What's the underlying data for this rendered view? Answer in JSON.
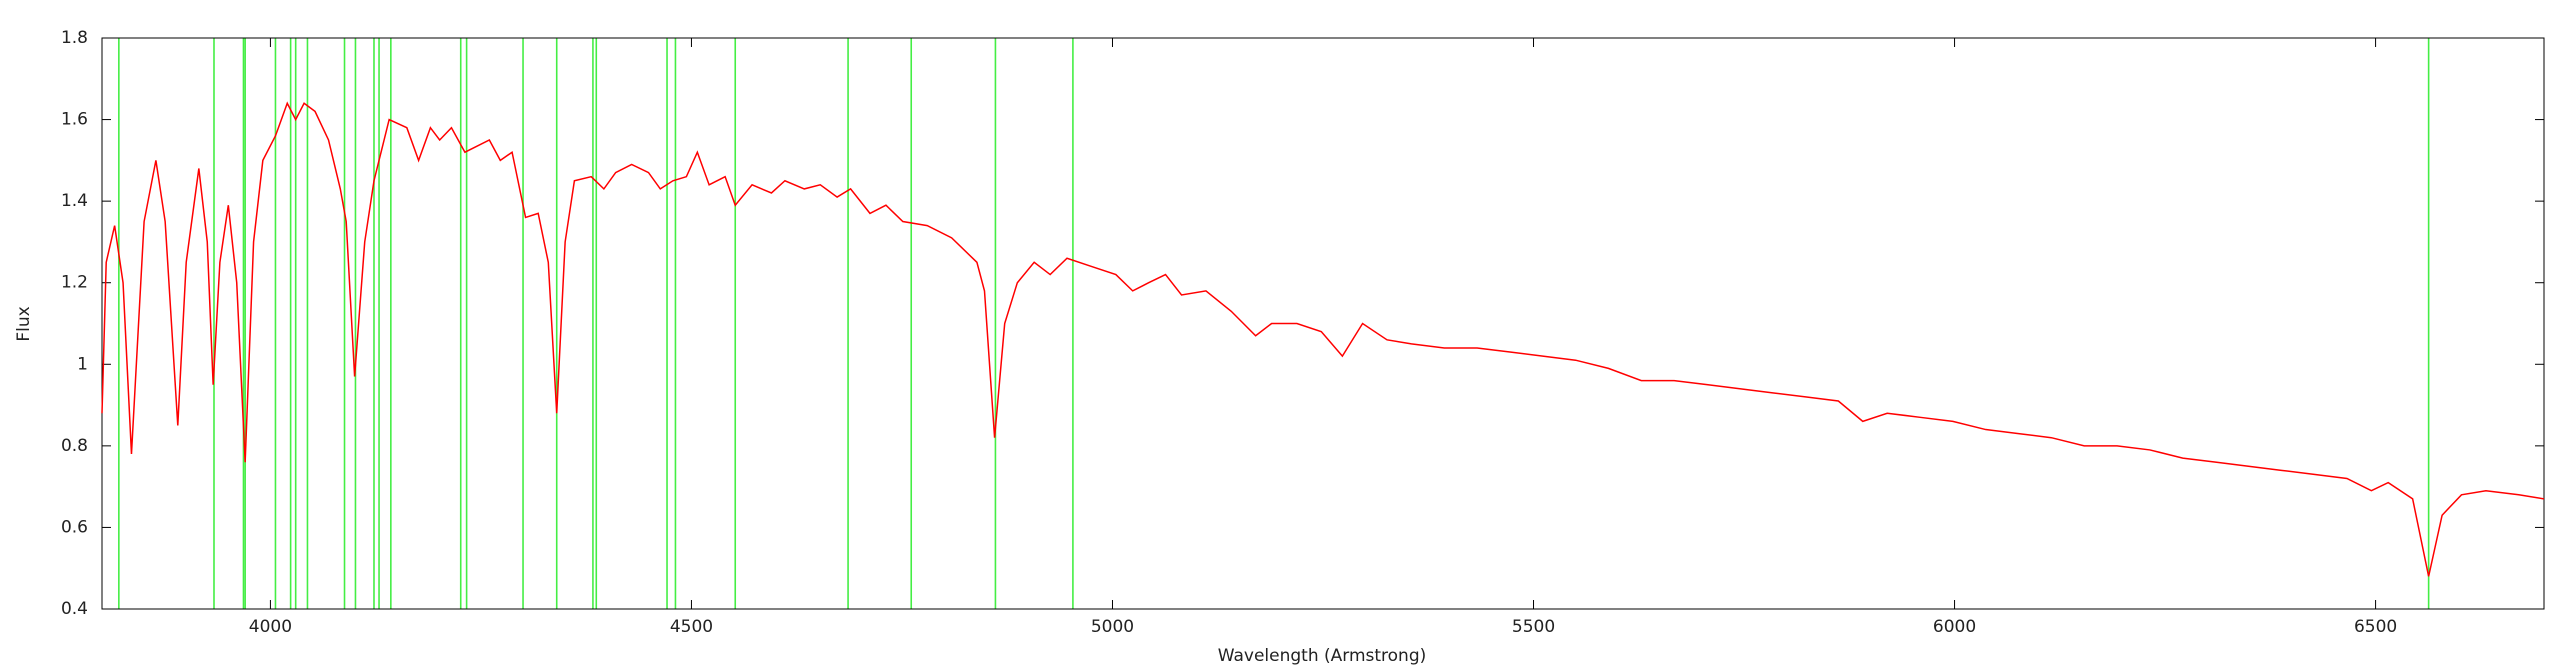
{
  "chart_data": {
    "type": "line",
    "x_label": "Wavelength (Armstrong)",
    "y_label": "Flux",
    "xlim": [
      3800,
      6700
    ],
    "ylim": [
      0.4,
      1.8
    ],
    "xticks": [
      4000,
      4500,
      5000,
      5500,
      6000,
      6500
    ],
    "yticks": [
      0.4,
      0.6,
      0.8,
      1,
      1.2,
      1.4,
      1.6,
      1.8
    ],
    "vline_color": "#44ee44",
    "vlines": [
      3820,
      3933,
      3968,
      3970,
      4006,
      4024,
      4030,
      4044,
      4088,
      4101,
      4123,
      4129,
      4143,
      4226,
      4233,
      4300,
      4340,
      4383,
      4387,
      4471,
      4481,
      4552,
      4686,
      4761,
      4861,
      4953,
      6563
    ],
    "series": [
      {
        "name": "Flux",
        "color": "#ff0000",
        "x": [
          3800,
          3805,
          3815,
          3825,
          3835,
          3850,
          3864,
          3875,
          3890,
          3900,
          3915,
          3925,
          3932,
          3940,
          3950,
          3960,
          3970,
          3980,
          3991,
          4006,
          4020,
          4030,
          4040,
          4053,
          4069,
          4083,
          4090,
          4100,
          4112,
          4123,
          4141,
          4162,
          4176,
          4190,
          4201,
          4215,
          4231,
          4260,
          4273,
          4287,
          4303,
          4318,
          4330,
          4340,
          4350,
          4361,
          4381,
          4396,
          4410,
          4429,
          4449,
          4463,
          4478,
          4494,
          4507,
          4521,
          4540,
          4552,
          4572,
          4595,
          4611,
          4634,
          4653,
          4673,
          4689,
          4712,
          4731,
          4751,
          4780,
          4809,
          4839,
          4848,
          4860,
          4872,
          4887,
          4907,
          4926,
          4946,
          4975,
          5004,
          5024,
          5043,
          5063,
          5082,
          5111,
          5141,
          5170,
          5189,
          5219,
          5248,
          5273,
          5297,
          5326,
          5355,
          5394,
          5433,
          5472,
          5511,
          5550,
          5589,
          5628,
          5667,
          5706,
          5745,
          5784,
          5823,
          5862,
          5891,
          5920,
          5959,
          5998,
          6037,
          6076,
          6115,
          6154,
          6193,
          6232,
          6271,
          6310,
          6349,
          6388,
          6427,
          6466,
          6495,
          6515,
          6544,
          6563,
          6579,
          6602,
          6631,
          6670,
          6700
        ],
        "values": [
          0.88,
          1.25,
          1.34,
          1.2,
          0.78,
          1.35,
          1.5,
          1.35,
          0.85,
          1.25,
          1.48,
          1.3,
          0.95,
          1.25,
          1.39,
          1.2,
          0.76,
          1.3,
          1.5,
          1.56,
          1.64,
          1.6,
          1.64,
          1.62,
          1.55,
          1.43,
          1.35,
          0.97,
          1.3,
          1.45,
          1.6,
          1.58,
          1.5,
          1.58,
          1.55,
          1.58,
          1.52,
          1.55,
          1.5,
          1.52,
          1.36,
          1.37,
          1.25,
          0.88,
          1.3,
          1.45,
          1.46,
          1.43,
          1.47,
          1.49,
          1.47,
          1.43,
          1.45,
          1.46,
          1.52,
          1.44,
          1.46,
          1.39,
          1.44,
          1.42,
          1.45,
          1.43,
          1.44,
          1.41,
          1.43,
          1.37,
          1.39,
          1.35,
          1.34,
          1.31,
          1.25,
          1.18,
          0.82,
          1.1,
          1.2,
          1.25,
          1.22,
          1.26,
          1.24,
          1.22,
          1.18,
          1.2,
          1.22,
          1.17,
          1.18,
          1.13,
          1.07,
          1.1,
          1.1,
          1.08,
          1.02,
          1.1,
          1.06,
          1.05,
          1.04,
          1.04,
          1.03,
          1.02,
          1.01,
          0.99,
          0.96,
          0.96,
          0.95,
          0.94,
          0.93,
          0.92,
          0.91,
          0.86,
          0.88,
          0.87,
          0.86,
          0.84,
          0.83,
          0.82,
          0.8,
          0.8,
          0.79,
          0.77,
          0.76,
          0.75,
          0.74,
          0.73,
          0.72,
          0.69,
          0.71,
          0.67,
          0.48,
          0.63,
          0.68,
          0.69,
          0.68,
          0.67
        ]
      }
    ]
  }
}
